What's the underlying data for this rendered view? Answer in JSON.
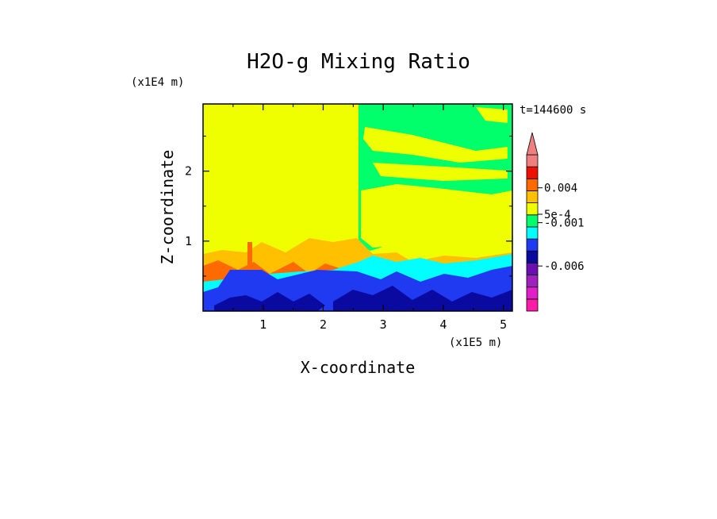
{
  "chart_data": {
    "type": "heatmap",
    "title": "H2O-g Mixing Ratio",
    "xlabel": "X-coordinate",
    "ylabel": "Z-coordinate",
    "x_unit": "(x1E5 m)",
    "y_unit": "(x1E4 m)",
    "time_label": "t=144600 s",
    "x_ticks": [
      "1",
      "2",
      "3",
      "4",
      "5"
    ],
    "y_ticks": [
      "1",
      "2"
    ],
    "xlim": [
      0,
      5.15
    ],
    "ylim": [
      0,
      2.96
    ],
    "colorbar": {
      "levels": [
        {
          "color": "#ff1aa8"
        },
        {
          "color": "#e020c8"
        },
        {
          "color": "#a020c0"
        },
        {
          "color": "#6a10b0"
        },
        {
          "color": "#0a0aa0"
        },
        {
          "color": "#1f3af0"
        },
        {
          "color": "#00ffff"
        },
        {
          "color": "#00ff6a"
        },
        {
          "color": "#f0ff00"
        },
        {
          "color": "#ffc000"
        },
        {
          "color": "#ff6a00"
        },
        {
          "color": "#f01000"
        },
        {
          "color": "#f08080"
        }
      ],
      "labels": [
        "0.004",
        "5e-4",
        "-0.001",
        "-0.006"
      ],
      "extend_max": true
    },
    "regions": [
      {
        "name": "upper-left",
        "dominant_color": "#f0ff00"
      },
      {
        "name": "upper-right",
        "dominant_color": "#00ff6a"
      },
      {
        "name": "boundary-layer",
        "dominant_color": "#1f3af0"
      }
    ]
  }
}
